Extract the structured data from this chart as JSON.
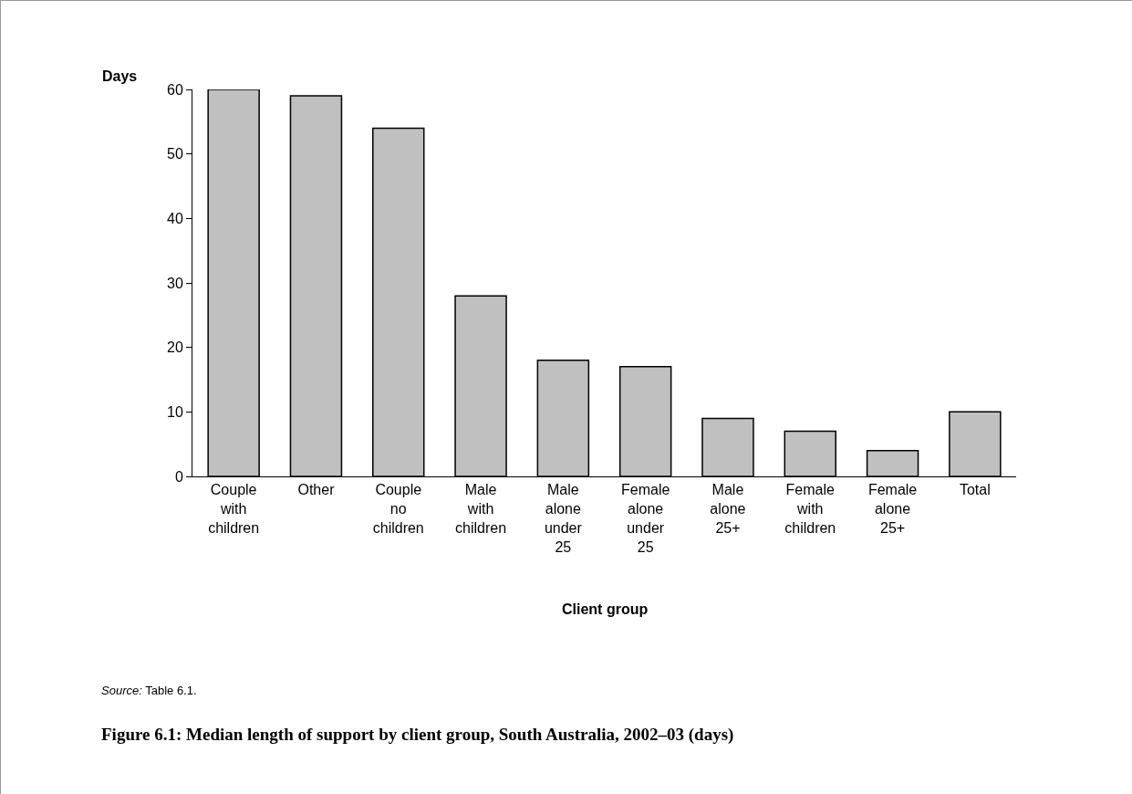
{
  "chart_data": {
    "type": "bar",
    "title": "Figure 6.1: Median length of support by client group, South Australia, 2002–03 (days)",
    "xlabel": "Client group",
    "ylabel": "Days",
    "categories": [
      "Couple with children",
      "Other",
      "Couple no children",
      "Male with children",
      "Male alone under 25",
      "Female alone under 25",
      "Male alone 25+",
      "Female with children",
      "Female alone 25+",
      "Total"
    ],
    "values": [
      60,
      59,
      54,
      28,
      18,
      17,
      9,
      7,
      4,
      10
    ],
    "color": "#c0c0c0",
    "ylim": [
      0,
      60
    ],
    "yticks": [
      0,
      10,
      20,
      30,
      40,
      50,
      60
    ],
    "grid": false,
    "legend": false,
    "annotations": [
      "Source: Table 6.1."
    ]
  }
}
